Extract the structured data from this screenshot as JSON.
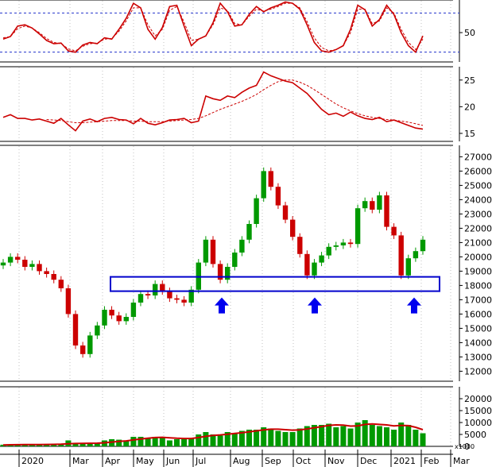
{
  "chart_data": [
    {
      "type": "line",
      "panel": "oscillator",
      "y_ticks": [
        50
      ],
      "reference_levels": [
        80,
        20
      ],
      "ylim": [
        5,
        100
      ],
      "series": [
        {
          "color": "#cc0000",
          "values": [
            40,
            44,
            60,
            62,
            57,
            48,
            38,
            33,
            34,
            22,
            20,
            31,
            35,
            33,
            42,
            40,
            55,
            72,
            95,
            88,
            55,
            40,
            58,
            90,
            92,
            60,
            30,
            40,
            45,
            65,
            95,
            82,
            60,
            62,
            78,
            90,
            82,
            88,
            92,
            97,
            95,
            86,
            62,
            35,
            22,
            20,
            24,
            30,
            55,
            92,
            85,
            60,
            70,
            92,
            78,
            50,
            30,
            20,
            45
          ]
        },
        {
          "color": "#cc0000",
          "dashed": true,
          "values": [
            42,
            44,
            56,
            60,
            57,
            50,
            41,
            35,
            33,
            25,
            22,
            29,
            33,
            34,
            40,
            41,
            52,
            68,
            88,
            88,
            62,
            45,
            55,
            84,
            90,
            66,
            38,
            40,
            45,
            62,
            88,
            84,
            64,
            62,
            75,
            86,
            83,
            86,
            90,
            95,
            95,
            88,
            67,
            42,
            27,
            22,
            24,
            30,
            50,
            86,
            86,
            64,
            68,
            88,
            80,
            55,
            35,
            24,
            40
          ]
        }
      ]
    },
    {
      "type": "line",
      "panel": "indicator",
      "y_ticks": [
        25,
        20,
        15
      ],
      "ylim": [
        13.5,
        27.5
      ],
      "series": [
        {
          "color": "#cc0000",
          "values": [
            18.0,
            18.5,
            17.8,
            17.8,
            17.5,
            17.7,
            17.3,
            16.9,
            17.8,
            16.6,
            15.5,
            17.3,
            17.7,
            17.2,
            17.8,
            18.0,
            17.6,
            17.5,
            16.8,
            17.8,
            16.9,
            16.6,
            17.0,
            17.5,
            17.6,
            17.8,
            17.0,
            17.3,
            22.0,
            21.5,
            21.2,
            22.0,
            21.7,
            22.7,
            23.5,
            24.0,
            26.5,
            25.8,
            25.3,
            24.8,
            24.5,
            23.5,
            22.5,
            21.0,
            19.5,
            18.5,
            18.8,
            18.2,
            19.0,
            18.3,
            17.8,
            17.6,
            18.0,
            17.2,
            17.5,
            17.0,
            16.5,
            16.0,
            15.8
          ]
        },
        {
          "color": "#cc0000",
          "dashed": true,
          "values": [
            null,
            null,
            null,
            null,
            null,
            null,
            17.6,
            17.5,
            17.4,
            17.2,
            17.0,
            17.0,
            17.1,
            17.2,
            17.3,
            17.4,
            17.4,
            17.4,
            17.3,
            17.3,
            17.2,
            17.2,
            17.2,
            17.3,
            17.4,
            17.5,
            17.6,
            17.8,
            18.3,
            18.9,
            19.5,
            20.0,
            20.5,
            21.0,
            21.6,
            22.3,
            23.2,
            24.0,
            24.7,
            25.0,
            25.0,
            24.6,
            24.0,
            23.2,
            22.3,
            21.4,
            20.5,
            19.8,
            19.2,
            18.7,
            18.3,
            18.0,
            17.8,
            17.6,
            17.5,
            17.3,
            17.1,
            16.8,
            16.5
          ]
        }
      ]
    },
    {
      "type": "candlestick",
      "panel": "price",
      "x_tick_labels": [
        "2020",
        "Mar",
        "Apr",
        "May",
        "Jun",
        "Jul",
        "Aug",
        "Sep",
        "Oct",
        "Nov",
        "Dec",
        "2021",
        "Feb",
        "Mar"
      ],
      "y_ticks": [
        27000,
        26000,
        25000,
        24000,
        23000,
        22000,
        21000,
        20000,
        19000,
        18000,
        17000,
        16000,
        15000,
        14000,
        13000,
        12000
      ],
      "ylim": [
        11300,
        27800
      ],
      "support_zone": [
        17600,
        18600
      ],
      "up_color": "#009900",
      "down_color": "#cc0000",
      "close": [
        19600,
        20000,
        19800,
        19300,
        19500,
        19000,
        18800,
        18400,
        17800,
        16000,
        13800,
        13200,
        14500,
        15200,
        16300,
        15900,
        15500,
        15800,
        16800,
        17400,
        17300,
        18100,
        17600,
        17100,
        17000,
        16800,
        17700,
        19600,
        21200,
        19500,
        18400,
        19300,
        20300,
        21200,
        22300,
        24100,
        26000,
        24900,
        23600,
        22600,
        21400,
        20200,
        18700,
        19600,
        20100,
        20700,
        20800,
        21000,
        20900,
        23400,
        23900,
        23300,
        24300,
        22100,
        21500,
        18700,
        19900,
        20400,
        21200
      ]
    },
    {
      "type": "bar",
      "panel": "volume",
      "y_ticks": [
        20000,
        15000,
        10000,
        5000,
        0
      ],
      "ylim": [
        0,
        25000
      ],
      "unit_label": "x1000",
      "bar_color": "#009900",
      "values": [
        700,
        600,
        500,
        800,
        900,
        700,
        900,
        1000,
        900,
        2500,
        1500,
        1200,
        1300,
        1500,
        2500,
        3000,
        2800,
        2500,
        4000,
        4000,
        3500,
        4000,
        3500,
        2500,
        3000,
        3000,
        3500,
        5000,
        6000,
        5000,
        4500,
        6000,
        5500,
        6500,
        7000,
        7000,
        8000,
        7500,
        6500,
        6000,
        6000,
        7500,
        8500,
        9000,
        9000,
        9500,
        8000,
        8500,
        7500,
        10000,
        11000,
        9000,
        8500,
        8000,
        7000,
        10000,
        9000,
        7000,
        5500
      ],
      "ma_color": "#cc0000",
      "ma": [
        600,
        650,
        700,
        720,
        750,
        780,
        800,
        850,
        900,
        1100,
        1200,
        1250,
        1300,
        1350,
        1500,
        1800,
        2100,
        2300,
        2700,
        3100,
        3400,
        3700,
        3800,
        3600,
        3400,
        3300,
        3300,
        3700,
        4200,
        4600,
        4800,
        5100,
        5400,
        5700,
        6100,
        6500,
        6900,
        7200,
        7200,
        7000,
        6800,
        6900,
        7300,
        7800,
        8300,
        8800,
        9000,
        8900,
        8500,
        8600,
        9200,
        9400,
        9200,
        9000,
        8600,
        8800,
        8700,
        8000,
        7000
      ]
    }
  ]
}
